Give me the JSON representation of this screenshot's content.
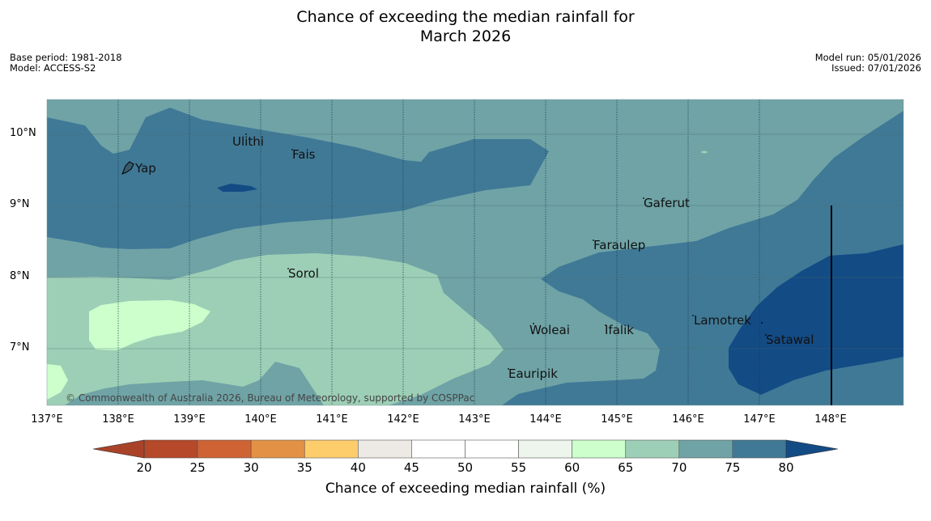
{
  "title": {
    "line1": "Chance of exceeding the median rainfall for",
    "line2": "March 2026"
  },
  "meta_left": {
    "base_period": "Base period: 1981-2018",
    "model": "Model: ACCESS-S2"
  },
  "meta_right": {
    "model_run": "Model run: 05/01/2026",
    "issued": "Issued: 07/01/2026"
  },
  "map": {
    "lat_labels": [
      "10°N",
      "9°N",
      "8°N",
      "7°N"
    ],
    "lon_labels": [
      "137°E",
      "138°E",
      "139°E",
      "140°E",
      "141°E",
      "142°E",
      "143°E",
      "144°E",
      "145°E",
      "146°E",
      "147°E",
      "148°E"
    ],
    "places": [
      {
        "name": "Yap"
      },
      {
        "name": "Ulithi"
      },
      {
        "name": "Fais"
      },
      {
        "name": "Gaferut"
      },
      {
        "name": "Faraulep"
      },
      {
        "name": "Sorol"
      },
      {
        "name": "Lamotrek"
      },
      {
        "name": "Woleai"
      },
      {
        "name": "Ifalik"
      },
      {
        "name": "Satawal"
      },
      {
        "name": "Eauripik"
      }
    ],
    "copyright": "© Commonwealth of Australia 2026, Bureau of Meteorology, supported by COSPPac"
  },
  "colorbar": {
    "ticks": [
      "20",
      "25",
      "30",
      "35",
      "40",
      "45",
      "50",
      "55",
      "60",
      "65",
      "70",
      "75",
      "80"
    ],
    "colors": {
      "below20": "#a8432a",
      "20_25": "#b5492a",
      "25_30": "#cf6334",
      "30_35": "#e39245",
      "35_40": "#fdcd6c",
      "40_45": "#ede9e4",
      "45_50": "#ffffff",
      "50_55": "#ffffff",
      "55_60": "#edf5ec",
      "60_65": "#ccffcc",
      "65_70": "#9dcfb6",
      "70_75": "#6fa3a6",
      "75_80": "#407996",
      "above80": "#134b85"
    },
    "label": "Chance of exceeding median rainfall (%)"
  }
}
